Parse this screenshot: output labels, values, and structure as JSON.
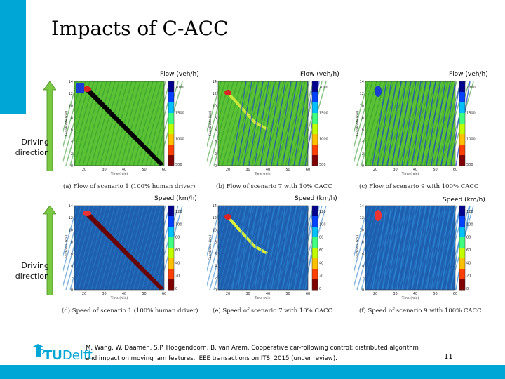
{
  "slide": {
    "title": "Impacts of C-ACC",
    "page_number": "11"
  },
  "rows": [
    {
      "direction_label_line1": "Driving",
      "direction_label_line2": "direction",
      "panels": [
        {
          "top_label": "Flow (veh/h)",
          "caption": "(a) Flow of scenario 1 (100% human driver)",
          "kind": "flow",
          "scenario": 1,
          "y_ticks": [
            "14",
            "12",
            "10",
            "8",
            "6",
            "4",
            "2",
            "0"
          ],
          "x_ticks": [
            "20",
            "30",
            "40",
            "50",
            "60"
          ],
          "cbar_ticks": [
            "2000",
            "1500",
            "1000",
            "500"
          ],
          "ylabel": "Coordinate (km)",
          "xlabel": "Time (min)"
        },
        {
          "top_label": "Flow (veh/h)",
          "caption": "(b) Flow of scenario 7 with 10% CACC",
          "kind": "flow",
          "scenario": 7,
          "y_ticks": [
            "14",
            "12",
            "10",
            "8",
            "6",
            "4",
            "2",
            "0"
          ],
          "x_ticks": [
            "20",
            "30",
            "40",
            "50",
            "60"
          ],
          "cbar_ticks": [
            "2000",
            "1500",
            "1000",
            "500"
          ],
          "ylabel": "Coordinate (km)",
          "xlabel": "Time (min)"
        },
        {
          "top_label": "Flow (veh/h)",
          "caption": "(c) Flow of scenario 9 with 100% CACC",
          "kind": "flow",
          "scenario": 9,
          "y_ticks": [
            "14",
            "12",
            "10",
            "8",
            "6",
            "4",
            "2",
            "0"
          ],
          "x_ticks": [
            "20",
            "30",
            "40",
            "50",
            "60"
          ],
          "cbar_ticks": [
            "2000",
            "1500",
            "1000",
            "500"
          ],
          "ylabel": "Coordinate (km)",
          "xlabel": "Time (min)"
        }
      ]
    },
    {
      "direction_label_line1": "Driving",
      "direction_label_line2": "direction",
      "panels": [
        {
          "top_label": "Speed (km/h)",
          "caption": "(d) Speed of scenario 1 (100% human driver)",
          "kind": "speed",
          "scenario": 1,
          "y_ticks": [
            "14",
            "12",
            "10",
            "8",
            "6",
            "4",
            "2",
            "0"
          ],
          "x_ticks": [
            "20",
            "30",
            "40",
            "50",
            "60"
          ],
          "cbar_ticks": [
            "120",
            "100",
            "80",
            "60",
            "40",
            "20",
            "0"
          ],
          "ylabel": "Coordinate (km)",
          "xlabel": "Time (min)"
        },
        {
          "top_label": "Speed (km/h)",
          "caption": "(e) Speed of scenario 7 with 10% CACC",
          "kind": "speed",
          "scenario": 7,
          "y_ticks": [
            "14",
            "12",
            "10",
            "8",
            "6",
            "4",
            "2",
            "0"
          ],
          "x_ticks": [
            "20",
            "30",
            "40",
            "50",
            "60"
          ],
          "cbar_ticks": [
            "120",
            "100",
            "80",
            "60",
            "40",
            "20",
            "0"
          ],
          "ylabel": "Coordinate (km)",
          "xlabel": "Time (min)"
        },
        {
          "top_label": "Speed (km/h)",
          "caption": "(f) Speed of scenario 9 with 100% CACC",
          "kind": "speed",
          "scenario": 9,
          "y_ticks": [
            "14",
            "12",
            "10",
            "8",
            "6",
            "4",
            "2",
            "0"
          ],
          "x_ticks": [
            "20",
            "30",
            "40",
            "50",
            "60"
          ],
          "cbar_ticks": [
            "120",
            "100",
            "80",
            "60",
            "40",
            "20",
            "0"
          ],
          "ylabel": "Coordinate (km)",
          "xlabel": "Time (min)"
        }
      ]
    }
  ],
  "footer": {
    "logo_tu": "TU",
    "logo_delft": "Delft",
    "reference_line1": "M. Wang, W. Daamen, S.P. Hoogendoorn, B. van Arem. Cooperative car-following control: distributed algorithm",
    "reference_line2": "and impact on moving jam features. IEEE transactions on ITS, 2015 (under review)."
  },
  "colors": {
    "accent": "#00a6d6",
    "flow_background": "#5bc236",
    "flow_jam": "#000000",
    "speed_background": "#1f5fb0",
    "speed_jam": "#6b0000",
    "arrow_fill": "#7ac943"
  }
}
